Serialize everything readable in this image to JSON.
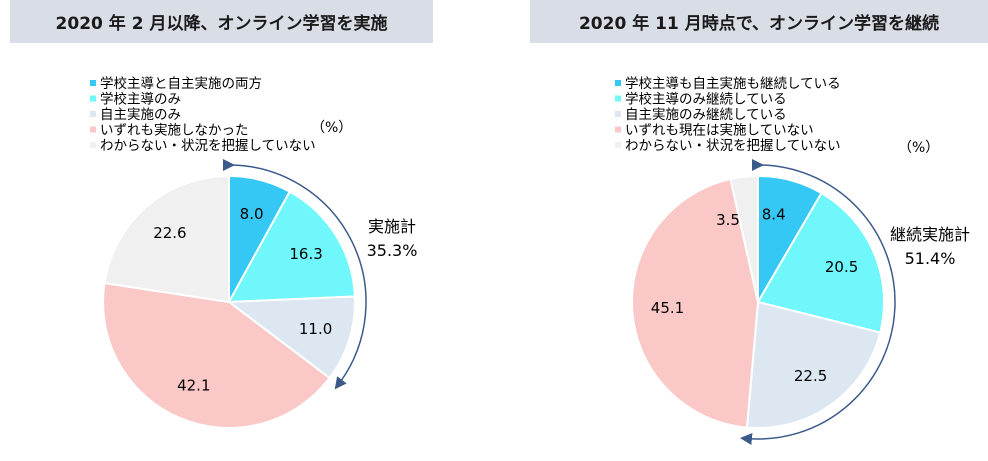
{
  "chart_data": [
    {
      "type": "pie",
      "title": "2020 年 2 月以降、オンライン学習を実施",
      "unit_label": "（%）",
      "categories": [
        "学校主導と自主実施の両方",
        "学校主導のみ",
        "自主実施のみ",
        "いずれも実施しなかった",
        "わからない・状況を把握していない"
      ],
      "values": [
        8.0,
        16.3,
        11.0,
        42.1,
        22.6
      ],
      "value_labels": [
        "8.0",
        "16.3",
        "11.0",
        "42.1",
        "22.6"
      ],
      "colors": [
        "#35c8f5",
        "#70f7fb",
        "#dde7f2",
        "#fbc8c8",
        "#f0f0f0"
      ],
      "annotation": {
        "label": "実施計",
        "value": "35.3%"
      },
      "legend_position": "top"
    },
    {
      "type": "pie",
      "title": "2020 年 11 月時点で、オンライン学習を継続",
      "unit_label": "（%）",
      "categories": [
        "学校主導も自主実施も継続している",
        "学校主導のみ継続している",
        "自主実施のみ継続している",
        "いずれも現在は実施していない",
        "わからない・状況を把握していない"
      ],
      "values": [
        8.4,
        20.5,
        22.5,
        45.1,
        3.5
      ],
      "value_labels": [
        "8.4",
        "20.5",
        "22.5",
        "45.1",
        "3.5"
      ],
      "colors": [
        "#35c8f5",
        "#70f7fb",
        "#dde7f2",
        "#fbc8c8",
        "#f0f0f0"
      ],
      "annotation": {
        "label": "継続実施計",
        "value": "51.4%"
      },
      "legend_position": "top"
    }
  ]
}
